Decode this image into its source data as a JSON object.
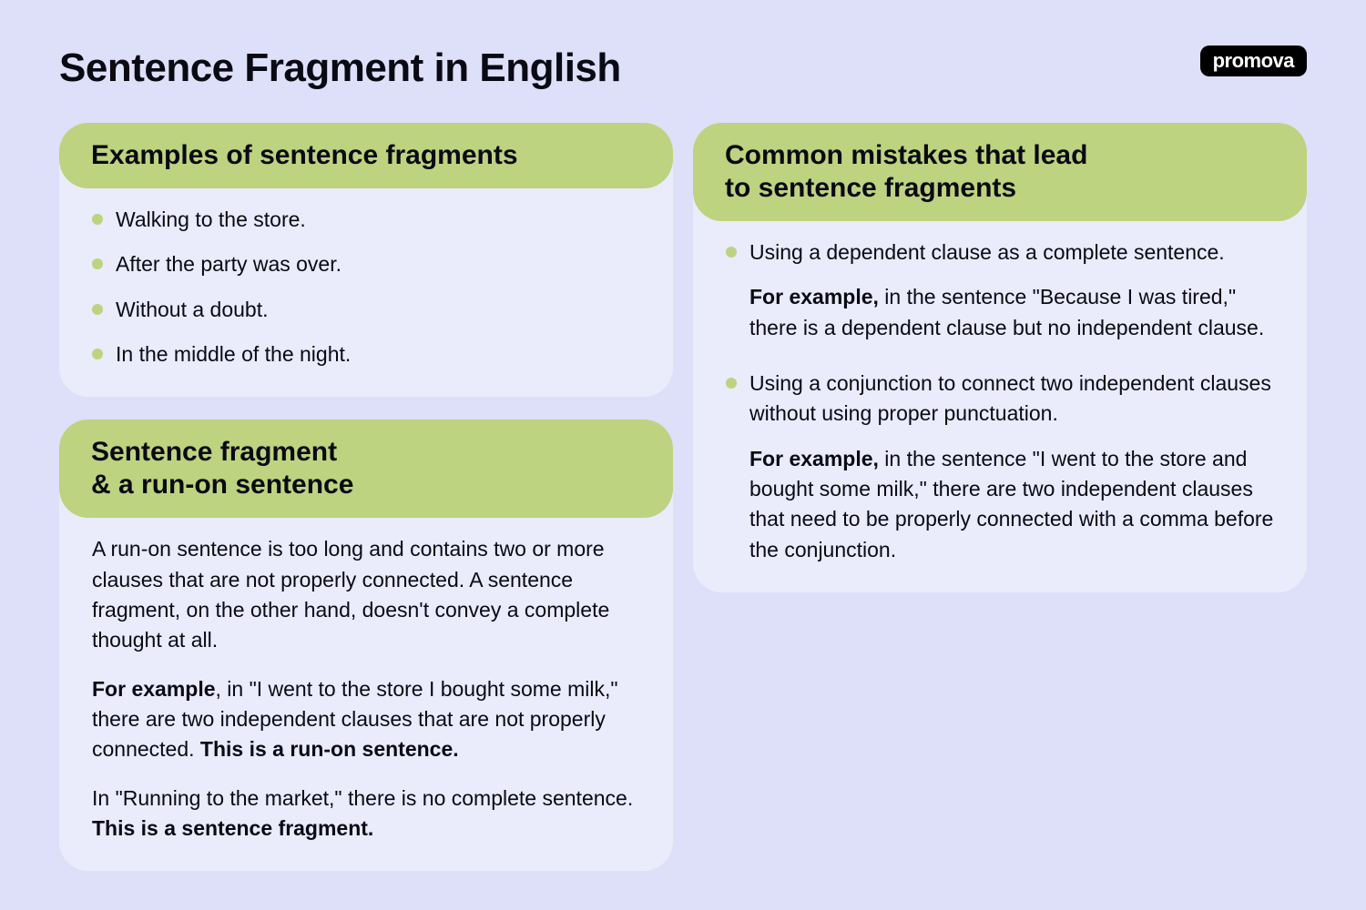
{
  "page": {
    "title": "Sentence Fragment in English",
    "logo": "promova"
  },
  "colors": {
    "page_bg": "#dedff9",
    "card_header_bg": "#bdd37f",
    "card_body_bg": "#eaebfb",
    "bullet": "#bdd37f",
    "text": "#0a0a14",
    "logo_bg": "#000000",
    "logo_text": "#ffffff"
  },
  "typography": {
    "title_fontsize": 44,
    "section_header_fontsize": 30,
    "body_fontsize": 23
  },
  "examples": {
    "title": "Examples of sentence fragments",
    "items": [
      "Walking to the store.",
      "After the party was over.",
      "Without a doubt.",
      "In the middle of the night."
    ]
  },
  "runon": {
    "title_line1": "Sentence fragment",
    "title_line2": "& a run-on sentence",
    "intro": "A run-on sentence is too long and contains two or more clauses that are not properly connected. A sentence fragment, on the other hand, doesn't convey a complete thought at all.",
    "example_lead": "For example",
    "example_text": ", in \"I went to the store I bought some milk,\" there are two independent clauses that are not properly connected. ",
    "example_bold": "This is a run-on sentence.",
    "frag_text": "In \"Running to the market,\" there is no complete sentence. ",
    "frag_bold": "This is a sentence fragment."
  },
  "mistakes": {
    "title_line1": "Common mistakes that lead",
    "title_line2": "to sentence fragments",
    "items": [
      {
        "point": "Using a dependent clause as a complete sentence.",
        "example_lead": "For example,",
        "example_text": " in the sentence \"Because I was tired,\" there is a dependent clause but no independent clause."
      },
      {
        "point": "Using a conjunction to connect two independent clauses without using proper punctuation.",
        "example_lead": "For example,",
        "example_text": " in the sentence \"I went to the store and bought some milk,\" there are two independent clauses that need to be properly connected with a comma before the conjunction."
      }
    ]
  }
}
